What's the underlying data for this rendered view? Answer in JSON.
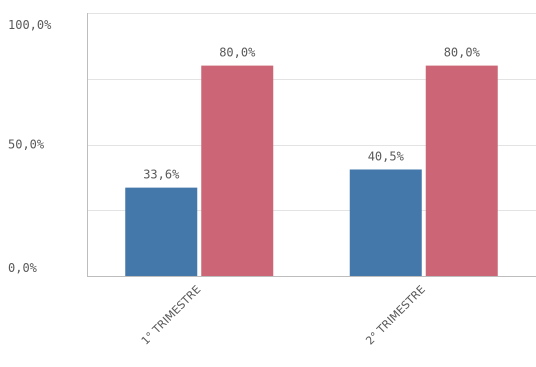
{
  "chart_data": {
    "type": "bar",
    "categories": [
      "1° TRIMESTRE",
      "2° TRIMESTRE"
    ],
    "series": [
      {
        "values": [
          33.6,
          40.5
        ],
        "color": "#4477aa"
      },
      {
        "values": [
          80.0,
          80.0
        ],
        "color": "#cc6677"
      }
    ],
    "data_labels": [
      [
        "33,6%",
        "40,5%"
      ],
      [
        "80,0%",
        "80,0%"
      ]
    ],
    "y_ticks": [
      {
        "value": 0,
        "label": "0,0%"
      },
      {
        "value": 50,
        "label": "50,0%"
      },
      {
        "value": 100,
        "label": "100,0%"
      }
    ],
    "ylim": [
      0,
      100
    ],
    "grid": true,
    "title": "",
    "xlabel": "",
    "ylabel": ""
  }
}
